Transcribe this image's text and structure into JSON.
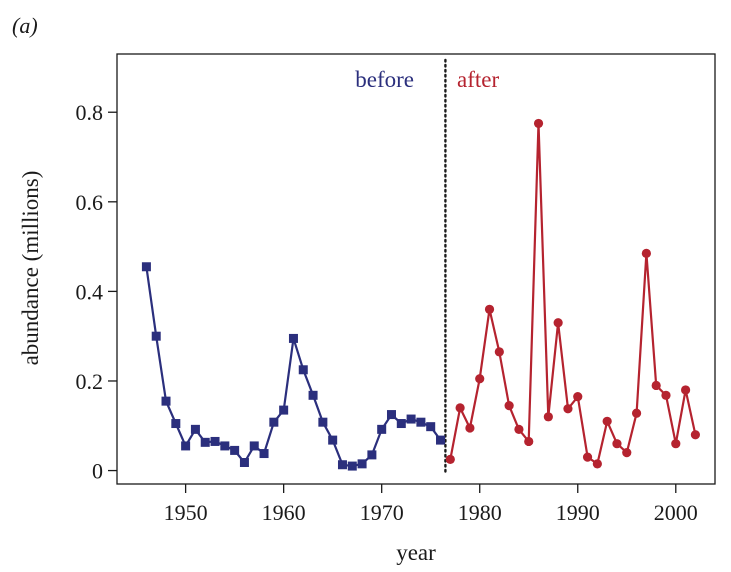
{
  "chart_data": {
    "type": "line",
    "panel_label": "(a)",
    "xlabel": "year",
    "ylabel": "abundance (millions)",
    "xlim": [
      1943,
      2004
    ],
    "ylim": [
      -0.03,
      0.93
    ],
    "x_ticks": [
      1950,
      1960,
      1970,
      1980,
      1990,
      2000
    ],
    "y_ticks": [
      0,
      0.2,
      0.4,
      0.6,
      0.8
    ],
    "y_tick_labels": [
      "0",
      "0.2",
      "0.4",
      "0.6",
      "0.8"
    ],
    "divider_x": 1976.5,
    "annotations": [
      {
        "text": "before",
        "color": "#2b2f7d",
        "side": "left"
      },
      {
        "text": "after",
        "color": "#b5232f",
        "side": "right"
      }
    ],
    "series": [
      {
        "marker": "square",
        "color": "#2b2f7d",
        "x": [
          1946,
          1947,
          1948,
          1949,
          1950,
          1951,
          1952,
          1953,
          1954,
          1955,
          1956,
          1957,
          1958,
          1959,
          1960,
          1961,
          1962,
          1963,
          1964,
          1965,
          1966,
          1967,
          1968,
          1969,
          1970,
          1971,
          1972,
          1973,
          1974,
          1975,
          1976
        ],
        "y": [
          0.455,
          0.3,
          0.155,
          0.105,
          0.055,
          0.092,
          0.063,
          0.065,
          0.055,
          0.045,
          0.018,
          0.055,
          0.038,
          0.108,
          0.135,
          0.295,
          0.225,
          0.168,
          0.108,
          0.068,
          0.013,
          0.01,
          0.015,
          0.035,
          0.092,
          0.125,
          0.105,
          0.115,
          0.108,
          0.098,
          0.068
        ]
      },
      {
        "marker": "circle",
        "color": "#b5232f",
        "x": [
          1977,
          1978,
          1979,
          1980,
          1981,
          1982,
          1983,
          1984,
          1985,
          1986,
          1987,
          1988,
          1989,
          1990,
          1991,
          1992,
          1993,
          1994,
          1995,
          1996,
          1997,
          1998,
          1999,
          2000,
          2001,
          2002
        ],
        "y": [
          0.025,
          0.14,
          0.095,
          0.205,
          0.36,
          0.265,
          0.145,
          0.092,
          0.065,
          0.775,
          0.12,
          0.33,
          0.138,
          0.165,
          0.03,
          0.015,
          0.11,
          0.06,
          0.04,
          0.128,
          0.485,
          0.19,
          0.168,
          0.06,
          0.18,
          0.08
        ]
      }
    ]
  }
}
